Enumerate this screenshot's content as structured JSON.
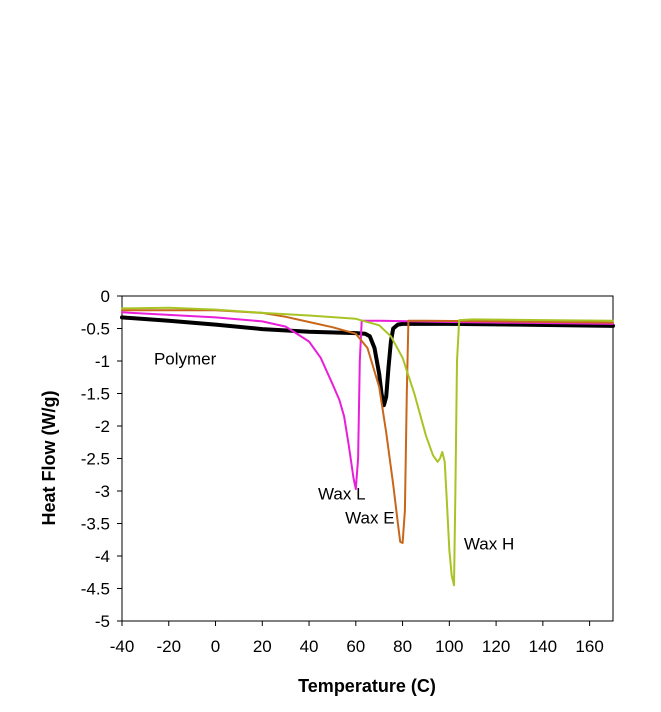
{
  "chart_data": {
    "type": "line",
    "title": "",
    "xlabel": "Temperature (C)",
    "ylabel": "Heat Flow (W/g)",
    "xlim": [
      -40,
      170
    ],
    "ylim": [
      -5,
      0
    ],
    "xticks": [
      -40,
      -20,
      0,
      20,
      40,
      60,
      80,
      100,
      120,
      140,
      160
    ],
    "yticks": [
      0,
      -0.5,
      -1,
      -1.5,
      -2,
      -2.5,
      -3,
      -3.5,
      -4,
      -4.5,
      -5
    ],
    "grid": false,
    "legend": "none",
    "annotations": [
      {
        "text": "Polymer",
        "x": -13,
        "y": -1.05
      },
      {
        "text": "Wax L",
        "x": 54,
        "y": -3.13
      },
      {
        "text": "Wax E",
        "x": 66,
        "y": -3.5
      },
      {
        "text": "Wax H",
        "x": 117,
        "y": -3.9
      }
    ],
    "series": [
      {
        "color": "#000000",
        "x": [
          -40,
          -20,
          0,
          20,
          40,
          60,
          64,
          66,
          68,
          70,
          71,
          72,
          73,
          74,
          75,
          76,
          78,
          80,
          100,
          130,
          170
        ],
        "y": [
          -0.33,
          -0.38,
          -0.44,
          -0.51,
          -0.55,
          -0.57,
          -0.58,
          -0.62,
          -0.8,
          -1.2,
          -1.5,
          -1.68,
          -1.55,
          -1.1,
          -0.7,
          -0.5,
          -0.44,
          -0.43,
          -0.43,
          -0.44,
          -0.46
        ]
      },
      {
        "color": "#E91ED8",
        "x": [
          -40,
          -20,
          0,
          20,
          30,
          40,
          45,
          50,
          53,
          55,
          57,
          59,
          60,
          61,
          61.7,
          62.5,
          70,
          100,
          170
        ],
        "y": [
          -0.25,
          -0.29,
          -0.33,
          -0.39,
          -0.47,
          -0.7,
          -0.95,
          -1.35,
          -1.6,
          -1.85,
          -2.3,
          -2.8,
          -2.97,
          -2.5,
          -1.0,
          -0.38,
          -0.38,
          -0.4,
          -0.43
        ]
      },
      {
        "color": "#C8661A",
        "x": [
          -40,
          -20,
          0,
          20,
          30,
          40,
          50,
          60,
          65,
          70,
          73,
          76,
          78,
          79,
          80,
          81,
          81.8,
          82.5,
          90,
          120,
          170
        ],
        "y": [
          -0.22,
          -0.22,
          -0.22,
          -0.26,
          -0.32,
          -0.4,
          -0.48,
          -0.58,
          -0.8,
          -1.4,
          -2.1,
          -2.9,
          -3.5,
          -3.78,
          -3.8,
          -3.3,
          -1.5,
          -0.38,
          -0.38,
          -0.39,
          -0.41
        ]
      },
      {
        "color": "#A8C424",
        "x": [
          -40,
          -20,
          0,
          20,
          40,
          60,
          70,
          75,
          80,
          85,
          90,
          93,
          95,
          96,
          97,
          98,
          99,
          100,
          101,
          102,
          102.6,
          103.3,
          104.2,
          110,
          140,
          170
        ],
        "y": [
          -0.19,
          -0.18,
          -0.21,
          -0.26,
          -0.3,
          -0.35,
          -0.45,
          -0.62,
          -0.95,
          -1.5,
          -2.15,
          -2.45,
          -2.55,
          -2.5,
          -2.4,
          -2.55,
          -3.2,
          -3.9,
          -4.3,
          -4.45,
          -3.0,
          -1.0,
          -0.37,
          -0.36,
          -0.37,
          -0.38
        ]
      }
    ]
  }
}
